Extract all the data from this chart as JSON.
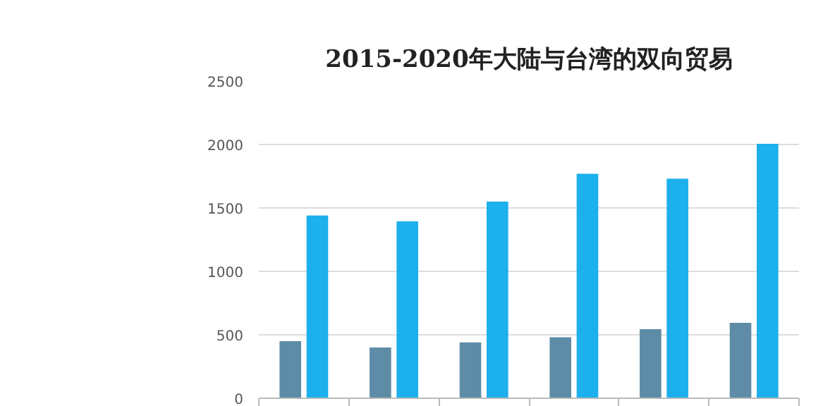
{
  "chart_data": {
    "type": "bar",
    "title": "2015-2020年大陆与台湾的双向贸易",
    "categories": [
      null,
      null,
      null,
      null,
      null,
      null
    ],
    "series": [
      {
        "color": "#5e8ca6",
        "values": [
          450,
          400,
          440,
          480,
          545,
          595
        ]
      },
      {
        "color": "#1cb0ec",
        "values": [
          1440,
          1395,
          1550,
          1770,
          1730,
          2005
        ]
      }
    ],
    "ylim": [
      0,
      2500
    ],
    "yticks": [
      0,
      500,
      1000,
      1500,
      2000,
      2500
    ],
    "grid": "y",
    "tick_labels": "y"
  }
}
